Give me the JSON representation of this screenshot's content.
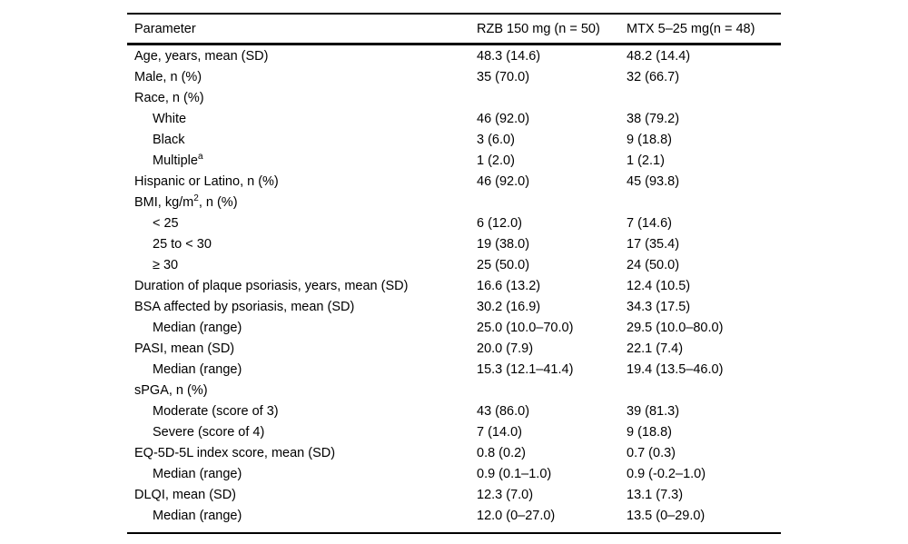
{
  "table": {
    "columns": [
      "Parameter",
      "RZB 150 mg (n = 50)",
      "MTX 5–25 mg(n = 48)"
    ],
    "rows": [
      {
        "label": "Age, years, mean (SD)",
        "sup": "",
        "label_post": "",
        "indent": 0,
        "rzb": "48.3 (14.6)",
        "mtx": "48.2 (14.4)"
      },
      {
        "label": "Male, n (%)",
        "sup": "",
        "label_post": "",
        "indent": 0,
        "rzb": "35 (70.0)",
        "mtx": "32 (66.7)"
      },
      {
        "label": "Race, n (%)",
        "sup": "",
        "label_post": "",
        "indent": 0,
        "rzb": "",
        "mtx": ""
      },
      {
        "label": "White",
        "sup": "",
        "label_post": "",
        "indent": 1,
        "rzb": "46 (92.0)",
        "mtx": "38 (79.2)"
      },
      {
        "label": "Black",
        "sup": "",
        "label_post": "",
        "indent": 1,
        "rzb": "3 (6.0)",
        "mtx": "9 (18.8)"
      },
      {
        "label": "Multiple",
        "sup": "a",
        "label_post": "",
        "indent": 1,
        "rzb": "1 (2.0)",
        "mtx": "1 (2.1)"
      },
      {
        "label": "Hispanic or Latino, n (%)",
        "sup": "",
        "label_post": "",
        "indent": 0,
        "rzb": "46 (92.0)",
        "mtx": "45 (93.8)"
      },
      {
        "label": "BMI, kg/m",
        "sup": "2",
        "label_post": ", n (%)",
        "indent": 0,
        "rzb": "",
        "mtx": ""
      },
      {
        "label": "< 25",
        "sup": "",
        "label_post": "",
        "indent": 1,
        "rzb": "6 (12.0)",
        "mtx": "7 (14.6)"
      },
      {
        "label": "25 to < 30",
        "sup": "",
        "label_post": "",
        "indent": 1,
        "rzb": "19 (38.0)",
        "mtx": "17 (35.4)"
      },
      {
        "label": "≥ 30",
        "sup": "",
        "label_post": "",
        "indent": 1,
        "rzb": "25 (50.0)",
        "mtx": "24 (50.0)"
      },
      {
        "label": "Duration of plaque psoriasis, years, mean (SD)",
        "sup": "",
        "label_post": "",
        "indent": 0,
        "rzb": "16.6 (13.2)",
        "mtx": "12.4 (10.5)"
      },
      {
        "label": "BSA affected by psoriasis, mean (SD)",
        "sup": "",
        "label_post": "",
        "indent": 0,
        "rzb": "30.2 (16.9)",
        "mtx": "34.3 (17.5)"
      },
      {
        "label": "Median (range)",
        "sup": "",
        "label_post": "",
        "indent": 1,
        "rzb": "25.0 (10.0–70.0)",
        "mtx": "29.5 (10.0–80.0)"
      },
      {
        "label": "PASI, mean (SD)",
        "sup": "",
        "label_post": "",
        "indent": 0,
        "rzb": "20.0 (7.9)",
        "mtx": "22.1 (7.4)"
      },
      {
        "label": "Median (range)",
        "sup": "",
        "label_post": "",
        "indent": 1,
        "rzb": "15.3 (12.1–41.4)",
        "mtx": "19.4 (13.5–46.0)"
      },
      {
        "label": "sPGA, n (%)",
        "sup": "",
        "label_post": "",
        "indent": 0,
        "rzb": "",
        "mtx": ""
      },
      {
        "label": "Moderate (score of 3)",
        "sup": "",
        "label_post": "",
        "indent": 1,
        "rzb": "43 (86.0)",
        "mtx": "39 (81.3)"
      },
      {
        "label": "Severe (score of 4)",
        "sup": "",
        "label_post": "",
        "indent": 1,
        "rzb": "7 (14.0)",
        "mtx": "9 (18.8)"
      },
      {
        "label": "EQ-5D-5L index score, mean (SD)",
        "sup": "",
        "label_post": "",
        "indent": 0,
        "rzb": "0.8 (0.2)",
        "mtx": "0.7 (0.3)"
      },
      {
        "label": "Median (range)",
        "sup": "",
        "label_post": "",
        "indent": 1,
        "rzb": "0.9 (0.1–1.0)",
        "mtx": "0.9 (-0.2–1.0)"
      },
      {
        "label": "DLQI, mean (SD)",
        "sup": "",
        "label_post": "",
        "indent": 0,
        "rzb": "12.3 (7.0)",
        "mtx": "13.1 (7.3)"
      },
      {
        "label": "Median (range)",
        "sup": "",
        "label_post": "",
        "indent": 1,
        "rzb": "12.0 (0–27.0)",
        "mtx": "13.5 (0–29.0)"
      }
    ]
  },
  "colors": {
    "text": "#000000",
    "background": "#ffffff",
    "rule": "#000000"
  }
}
